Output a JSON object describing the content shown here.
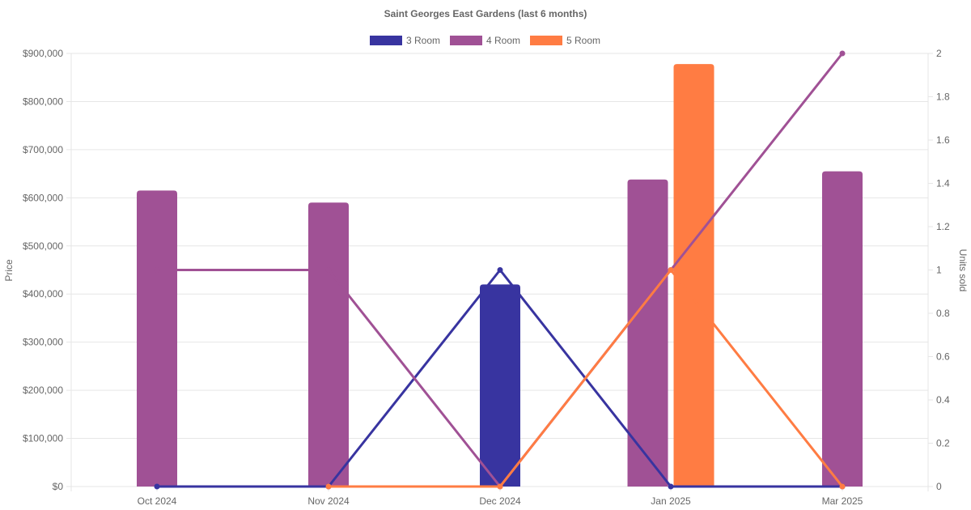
{
  "chart_data": {
    "type": "bar",
    "title": "Saint Georges East Gardens (last 6 months)",
    "categories": [
      "Oct 2024",
      "Nov 2024",
      "Dec 2024",
      "Jan 2025",
      "Mar 2025"
    ],
    "y_left": {
      "label": "Price",
      "ylim": [
        0,
        900000
      ],
      "ticks": [
        "$0",
        "$100,000",
        "$200,000",
        "$300,000",
        "$400,000",
        "$500,000",
        "$600,000",
        "$700,000",
        "$800,000",
        "$900,000"
      ]
    },
    "y_right": {
      "label": "Units sold",
      "ylim": [
        0,
        2
      ],
      "ticks": [
        "0",
        "0.2",
        "0.4",
        "0.6",
        "0.8",
        "1",
        "1.2",
        "1.4",
        "1.6",
        "1.8",
        "2"
      ]
    },
    "grid": true,
    "legend_position": "top",
    "series": [
      {
        "name": "3 Room",
        "color": "#3834a0",
        "price": [
          null,
          null,
          420000,
          null,
          null
        ],
        "units_sold": [
          0,
          0,
          1,
          0,
          0
        ]
      },
      {
        "name": "4 Room",
        "color": "#a05195",
        "price": [
          615000,
          590000,
          null,
          638000,
          655000
        ],
        "units_sold": [
          1,
          1,
          0,
          1,
          2
        ]
      },
      {
        "name": "5 Room",
        "color": "#ff7c43",
        "price": [
          null,
          null,
          null,
          878000,
          null
        ],
        "units_sold": [
          null,
          0,
          0,
          1,
          0
        ]
      }
    ]
  }
}
